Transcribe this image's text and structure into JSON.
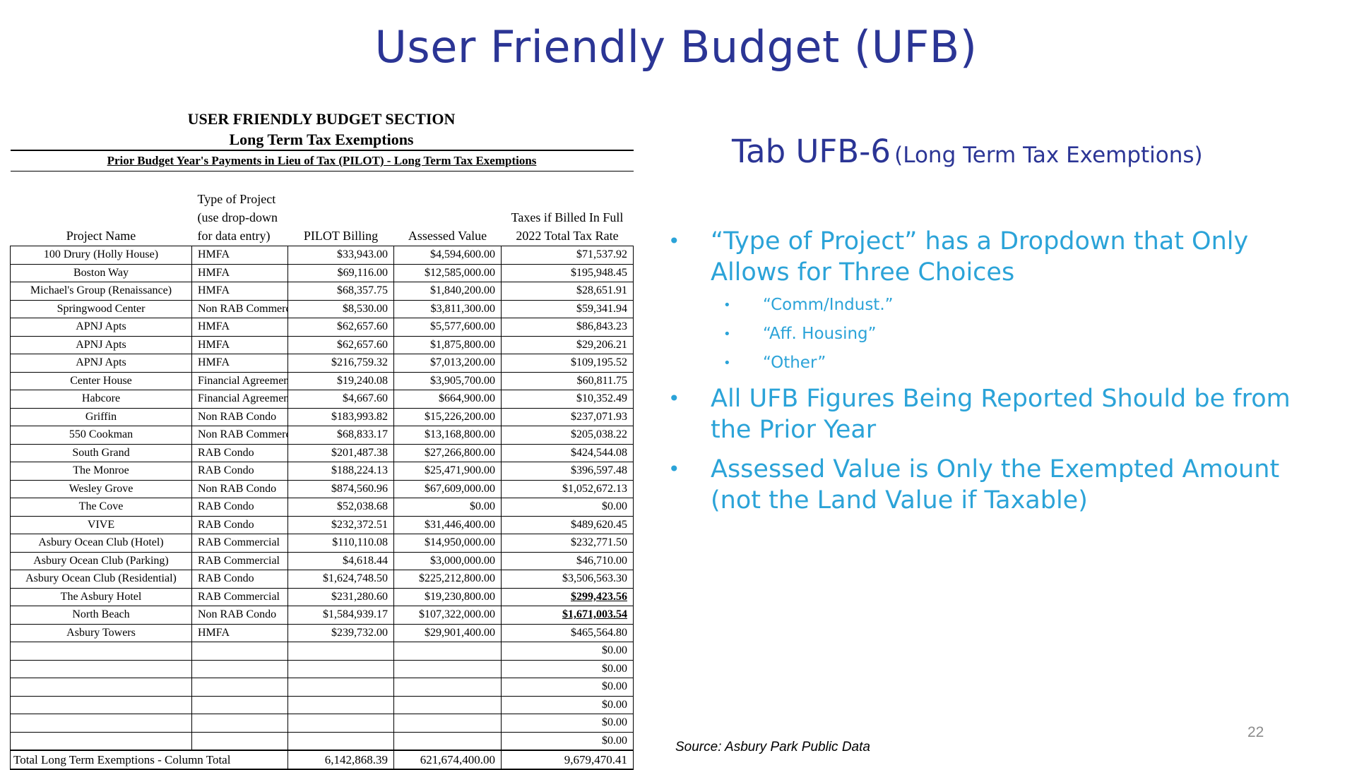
{
  "slide_title": "User Friendly Budget (UFB)",
  "table": {
    "heading1": "USER FRIENDLY BUDGET SECTION",
    "heading2": "Long Term Tax Exemptions",
    "subheading": "Prior Budget Year's Payments in Lieu of Tax (PILOT) - Long Term Tax Exemptions",
    "col_headers": {
      "project": "Project Name",
      "type": "Type of Project (use drop-down for data entry)",
      "pilot": "PILOT Billing",
      "assessed": "Assessed Value",
      "taxes": "Taxes if Billed In Full 2022 Total Tax Rate"
    },
    "rows": [
      [
        "100 Drury (Holly House)",
        "HMFA",
        "$33,943.00",
        "$4,594,600.00",
        "$71,537.92"
      ],
      [
        "Boston Way",
        "HMFA",
        "$69,116.00",
        "$12,585,000.00",
        "$195,948.45"
      ],
      [
        "Michael's Group (Renaissance)",
        "HMFA",
        "$68,357.75",
        "$1,840,200.00",
        "$28,651.91"
      ],
      [
        "Springwood Center",
        "Non RAB Commerci",
        "$8,530.00",
        "$3,811,300.00",
        "$59,341.94"
      ],
      [
        "APNJ Apts",
        "HMFA",
        "$62,657.60",
        "$5,577,600.00",
        "$86,843.23"
      ],
      [
        "APNJ Apts",
        "HMFA",
        "$62,657.60",
        "$1,875,800.00",
        "$29,206.21"
      ],
      [
        "APNJ Apts",
        "HMFA",
        "$216,759.32",
        "$7,013,200.00",
        "$109,195.52"
      ],
      [
        "Center House",
        "Financial Agreement",
        "$19,240.08",
        "$3,905,700.00",
        "$60,811.75"
      ],
      [
        "Habcore",
        "Financial Agreement",
        "$4,667.60",
        "$664,900.00",
        "$10,352.49"
      ],
      [
        "Griffin",
        "Non RAB Condo",
        "$183,993.82",
        "$15,226,200.00",
        "$237,071.93"
      ],
      [
        "550 Cookman",
        "Non RAB Commerci",
        "$68,833.17",
        "$13,168,800.00",
        "$205,038.22"
      ],
      [
        "South Grand",
        "RAB Condo",
        "$201,487.38",
        "$27,266,800.00",
        "$424,544.08"
      ],
      [
        "The Monroe",
        "RAB Condo",
        "$188,224.13",
        "$25,471,900.00",
        "$396,597.48"
      ],
      [
        "Wesley Grove",
        "Non RAB Condo",
        "$874,560.96",
        "$67,609,000.00",
        "$1,052,672.13"
      ],
      [
        "The Cove",
        "RAB Condo",
        "$52,038.68",
        "$0.00",
        "$0.00"
      ],
      [
        "VIVE",
        "RAB Condo",
        "$232,372.51",
        "$31,446,400.00",
        "$489,620.45"
      ],
      [
        "Asbury Ocean Club (Hotel)",
        "RAB Commercial",
        "$110,110.08",
        "$14,950,000.00",
        "$232,771.50"
      ],
      [
        "Asbury Ocean Club (Parking)",
        "RAB Commercial",
        "$4,618.44",
        "$3,000,000.00",
        "$46,710.00"
      ],
      [
        "Asbury Ocean Club (Residential)",
        "RAB Condo",
        "$1,624,748.50",
        "$225,212,800.00",
        "$3,506,563.30"
      ],
      [
        "The Asbury Hotel",
        "RAB Commercial",
        "$231,280.60",
        "$19,230,800.00",
        "$299,423.56"
      ],
      [
        "North Beach",
        "Non RAB Condo",
        "$1,584,939.17",
        "$107,322,000.00",
        "$1,671,003.54"
      ],
      [
        "Asbury Towers",
        "HMFA",
        "$239,732.00",
        "$29,901,400.00",
        "$465,564.80"
      ],
      [
        "",
        "",
        "",
        "",
        "$0.00"
      ],
      [
        "",
        "",
        "",
        "",
        "$0.00"
      ],
      [
        "",
        "",
        "",
        "",
        "$0.00"
      ],
      [
        "",
        "",
        "",
        "",
        "$0.00"
      ],
      [
        "",
        "",
        "",
        "",
        "$0.00"
      ],
      [
        "",
        "",
        "",
        "",
        "$0.00"
      ]
    ],
    "emphasized_rows": [
      19,
      20
    ],
    "total": {
      "label": "Total Long Term Exemptions - Column Total",
      "pilot": "6,142,868.39",
      "assessed": "621,674,400.00",
      "taxes": "9,679,470.41"
    }
  },
  "tab": {
    "title": "Tab UFB-6",
    "subtitle": "(Long Term Tax Exemptions)"
  },
  "bullets": {
    "b1": "“Type of Project” has a Dropdown that Only Allows for Three Choices",
    "subs": [
      "“Comm/Indust.”",
      "“Aff. Housing”",
      "“Other”"
    ],
    "b2": "All UFB Figures Being Reported Should be from the Prior Year",
    "b3": "Assessed Value is Only the Exempted Amount (not the Land Value if Taxable)"
  },
  "source": "Source: Asbury Park Public Data",
  "page_number": "22",
  "colors": {
    "title": "#2b3595",
    "bullet_text": "#2ba3d8",
    "page_number": "#8c8c8c"
  }
}
